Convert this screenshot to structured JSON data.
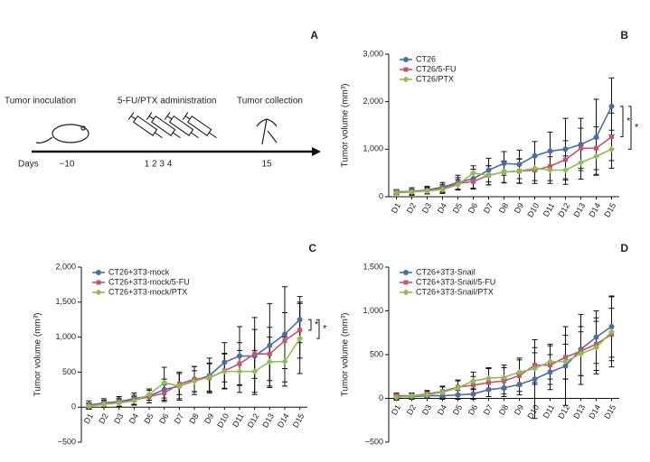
{
  "diagram": {
    "panel": "A",
    "steps": [
      "Tumor inoculation",
      "5-FU/PTX administration",
      "Tumor collection"
    ],
    "axis_label": "Days",
    "days": [
      "−10",
      "1 2 3 4",
      "15"
    ]
  },
  "chart_data": [
    {
      "type": "line",
      "panel": "B",
      "y_label": "Tumor volume (mm³)",
      "categories": [
        "D1",
        "D2",
        "D3",
        "D4",
        "D5",
        "D6",
        "D7",
        "D8",
        "D9",
        "D10",
        "D11",
        "D12",
        "D13",
        "D14",
        "D15"
      ],
      "ylim": [
        0,
        3000
      ],
      "yticks": [
        0,
        {
          "value": 1000,
          "label": "1,000"
        },
        {
          "value": 2000,
          "label": "2,000"
        },
        {
          "value": 3000,
          "label": "3,000"
        }
      ],
      "series": [
        {
          "name": "CT26",
          "color": "#4a6ea8",
          "marker": "circle",
          "values": [
            100,
            110,
            140,
            200,
            300,
            380,
            560,
            700,
            680,
            860,
            960,
            1000,
            1100,
            1250,
            1900
          ],
          "errors": [
            50,
            80,
            80,
            100,
            150,
            200,
            250,
            250,
            300,
            300,
            400,
            650,
            550,
            800,
            600
          ]
        },
        {
          "name": "CT26/5-FU",
          "color": "#c9546a",
          "marker": "square",
          "values": [
            90,
            100,
            130,
            170,
            280,
            320,
            450,
            520,
            540,
            560,
            640,
            780,
            1020,
            1020,
            1260
          ],
          "errors": [
            40,
            60,
            70,
            90,
            120,
            160,
            200,
            230,
            250,
            280,
            300,
            400,
            420,
            450,
            500
          ]
        },
        {
          "name": "CT26/PTX",
          "color": "#8cbf4e",
          "marker": "diamond",
          "values": [
            80,
            100,
            120,
            150,
            250,
            500,
            450,
            520,
            540,
            600,
            560,
            560,
            720,
            850,
            1000
          ],
          "errors": [
            40,
            50,
            60,
            80,
            110,
            150,
            200,
            220,
            260,
            260,
            280,
            300,
            350,
            380,
            400
          ]
        }
      ],
      "annotations": [
        "*",
        "*"
      ]
    },
    {
      "type": "line",
      "panel": "C",
      "y_label": "Tumor volume (mm³)",
      "categories": [
        "D1",
        "D2",
        "D3",
        "D4",
        "D5",
        "D6",
        "D7",
        "D8",
        "D9",
        "D10",
        "D11",
        "D12",
        "D13",
        "D14",
        "D15"
      ],
      "ylim": [
        -500,
        2000
      ],
      "yticks": [
        {
          "value": -500,
          "label": "−500"
        },
        0,
        500,
        {
          "value": 1000,
          "label": "1,000"
        },
        {
          "value": 1500,
          "label": "1,500"
        },
        {
          "value": 2000,
          "label": "2,000"
        }
      ],
      "series": [
        {
          "name": "CT26+3T3-mock",
          "color": "#4a6ea8",
          "marker": "circle",
          "values": [
            30,
            60,
            80,
            120,
            160,
            250,
            300,
            380,
            450,
            640,
            730,
            730,
            880,
            1040,
            1250
          ],
          "errors": [
            60,
            60,
            70,
            80,
            100,
            150,
            200,
            200,
            250,
            280,
            420,
            550,
            600,
            680,
            330
          ]
        },
        {
          "name": "CT26+3T3-mock/5-FU",
          "color": "#c9546a",
          "marker": "square",
          "values": [
            20,
            50,
            70,
            100,
            150,
            200,
            330,
            400,
            420,
            520,
            620,
            760,
            760,
            950,
            1100
          ],
          "errors": [
            40,
            50,
            60,
            70,
            90,
            120,
            150,
            180,
            200,
            250,
            300,
            350,
            380,
            400,
            400
          ]
        },
        {
          "name": "CT26+3T3-mock/PTX",
          "color": "#8cbf4e",
          "marker": "diamond",
          "values": [
            10,
            40,
            60,
            90,
            180,
            350,
            300,
            370,
            430,
            510,
            510,
            510,
            650,
            650,
            980
          ],
          "errors": [
            40,
            40,
            50,
            60,
            80,
            220,
            180,
            150,
            200,
            250,
            300,
            300,
            350,
            350,
            500
          ]
        }
      ],
      "annotations": [
        "*",
        "*"
      ]
    },
    {
      "type": "line",
      "panel": "D",
      "y_label": "Tumor volume (mm³)",
      "categories": [
        "D1",
        "D2",
        "D3",
        "D4",
        "D5",
        "D6",
        "D7",
        "D8",
        "D9",
        "D10",
        "D11",
        "D12",
        "D13",
        "D14",
        "D15"
      ],
      "ylim": [
        -500,
        1500
      ],
      "yticks": [
        {
          "value": -500,
          "label": "−500"
        },
        0,
        500,
        {
          "value": 1000,
          "label": "1,000"
        },
        {
          "value": 1500,
          "label": "1,500"
        }
      ],
      "series": [
        {
          "name": "CT26+3T3-Snail",
          "color": "#4a6ea8",
          "marker": "circle",
          "values": [
            20,
            20,
            30,
            30,
            40,
            50,
            100,
            120,
            160,
            220,
            300,
            370,
            560,
            700,
            820
          ],
          "errors": [
            30,
            30,
            30,
            40,
            50,
            60,
            80,
            100,
            120,
            450,
            200,
            450,
            400,
            300,
            350
          ]
        },
        {
          "name": "CT26+3T3-Snail/5-FU",
          "color": "#c9546a",
          "marker": "square",
          "values": [
            30,
            30,
            50,
            80,
            130,
            150,
            180,
            200,
            260,
            380,
            380,
            470,
            540,
            620,
            730
          ],
          "errors": [
            30,
            30,
            40,
            60,
            80,
            100,
            160,
            150,
            180,
            200,
            220,
            250,
            280,
            300,
            300
          ]
        },
        {
          "name": "CT26+3T3-Snail/PTX",
          "color": "#8cbf4e",
          "marker": "diamond",
          "values": [
            10,
            30,
            40,
            70,
            120,
            200,
            230,
            240,
            300,
            340,
            420,
            420,
            510,
            580,
            760
          ],
          "errors": [
            30,
            30,
            40,
            60,
            80,
            100,
            120,
            140,
            160,
            180,
            200,
            200,
            250,
            300,
            400
          ]
        }
      ],
      "annotations": []
    }
  ]
}
